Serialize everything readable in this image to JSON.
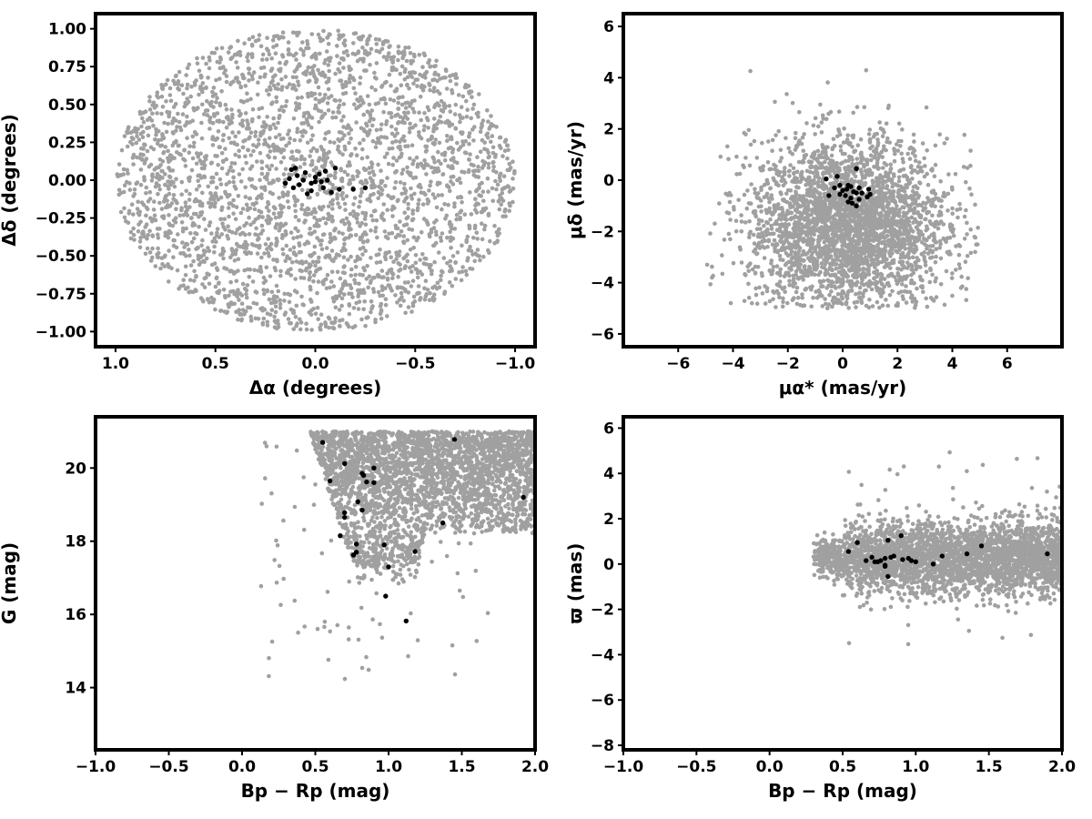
{
  "figure": {
    "colors": {
      "field": "#a0a0a0",
      "members": "#000000",
      "frame": "#000000"
    }
  },
  "chart_data": [
    {
      "type": "scatter",
      "xlabel": "Δα (degrees)",
      "ylabel": "Δδ (degrees)",
      "xlim": [
        1.1,
        -1.1
      ],
      "ylim": [
        -1.1,
        1.1
      ],
      "x_inverted": true,
      "grid": false,
      "xticks": [
        1.0,
        0.5,
        0.0,
        -0.5,
        -1.0
      ],
      "xtick_labels": [
        "1.0",
        "0.5",
        "0.0",
        "−0.5",
        "−1.0"
      ],
      "yticks": [
        1.0,
        0.75,
        0.5,
        0.25,
        0.0,
        -0.25,
        -0.5,
        -0.75,
        -1.0
      ],
      "ytick_labels": [
        "1.00",
        "0.75",
        "0.50",
        "0.25",
        "0.00",
        "−0.25",
        "−0.50",
        "−0.75",
        "−1.00"
      ],
      "field_region": {
        "shape": "disk",
        "center": [
          0,
          0
        ],
        "radius": 1.0,
        "approx_n": 3000
      },
      "member_points": [
        [
          -0.1,
          0.08
        ],
        [
          -0.05,
          0.06
        ],
        [
          -0.02,
          0.04
        ],
        [
          0.05,
          0.05
        ],
        [
          0.1,
          0.08
        ],
        [
          0.12,
          0.07
        ],
        [
          -0.06,
          0.0
        ],
        [
          -0.03,
          -0.01
        ],
        [
          0.0,
          -0.01
        ],
        [
          0.02,
          -0.02
        ],
        [
          0.06,
          0.0
        ],
        [
          0.08,
          -0.03
        ],
        [
          0.11,
          -0.05
        ],
        [
          0.13,
          0.01
        ],
        [
          0.15,
          -0.02
        ],
        [
          -0.04,
          -0.05
        ],
        [
          0.02,
          -0.07
        ],
        [
          0.04,
          -0.09
        ],
        [
          -0.08,
          -0.08
        ],
        [
          -0.12,
          -0.06
        ],
        [
          -0.19,
          -0.06
        ],
        [
          -0.25,
          -0.05
        ],
        [
          0.0,
          0.02
        ],
        [
          0.09,
          0.03
        ]
      ]
    },
    {
      "type": "scatter",
      "xlabel": "μα* (mas/yr)",
      "ylabel": "μδ (mas/yr)",
      "xlim": [
        -8,
        8
      ],
      "ylim": [
        -6.5,
        6.5
      ],
      "grid": false,
      "xticks": [
        -6,
        -4,
        -2,
        0,
        2,
        4,
        6
      ],
      "xtick_labels": [
        "−6",
        "−4",
        "−2",
        "0",
        "2",
        "4",
        "6"
      ],
      "yticks": [
        6,
        4,
        2,
        0,
        -2,
        -4,
        -6
      ],
      "ytick_labels": [
        "6",
        "4",
        "2",
        "0",
        "−2",
        "−4",
        "−6"
      ],
      "field_region": {
        "shape": "cloud",
        "center": [
          0.2,
          -1.8
        ],
        "spread": [
          1.8,
          1.7
        ],
        "approx_n": 3000
      },
      "member_points": [
        [
          -0.2,
          0.15
        ],
        [
          -0.6,
          0.05
        ],
        [
          0.5,
          0.45
        ],
        [
          -0.1,
          -0.2
        ],
        [
          0.2,
          -0.2
        ],
        [
          0.3,
          -0.25
        ],
        [
          0.6,
          -0.3
        ],
        [
          -0.3,
          -0.3
        ],
        [
          0.0,
          -0.4
        ],
        [
          0.4,
          -0.45
        ],
        [
          0.5,
          -0.5
        ],
        [
          0.95,
          -0.35
        ],
        [
          1.0,
          -0.55
        ],
        [
          0.1,
          -0.6
        ],
        [
          -0.5,
          -0.6
        ],
        [
          0.3,
          -0.7
        ],
        [
          0.6,
          -0.75
        ],
        [
          0.9,
          -0.65
        ],
        [
          -0.1,
          -0.55
        ],
        [
          0.35,
          -0.9
        ],
        [
          0.5,
          -1.0
        ],
        [
          0.2,
          -0.85
        ],
        [
          0.7,
          -0.5
        ],
        [
          0.15,
          -0.35
        ]
      ]
    },
    {
      "type": "scatter",
      "xlabel": "Bp − Rp (mag)",
      "ylabel": "G (mag)",
      "xlim": [
        -1.0,
        2.0
      ],
      "ylim": [
        12.3,
        21.4
      ],
      "y_inverted": false,
      "grid": false,
      "xticks": [
        -1.0,
        -0.5,
        0.0,
        0.5,
        1.0,
        1.5,
        2.0
      ],
      "xtick_labels": [
        "−1.0",
        "−0.5",
        "0.0",
        "0.5",
        "1.0",
        "1.5",
        "2.0"
      ],
      "yticks": [
        20,
        18,
        16,
        14
      ],
      "ytick_labels": [
        "20",
        "18",
        "16",
        "14"
      ],
      "field_region": {
        "shape": "cmd-wedge",
        "approx_n": 3000
      },
      "member_points": [
        [
          0.55,
          20.7
        ],
        [
          1.45,
          20.78
        ],
        [
          0.7,
          20.12
        ],
        [
          0.9,
          20.0
        ],
        [
          0.82,
          19.85
        ],
        [
          0.83,
          19.8
        ],
        [
          0.6,
          19.65
        ],
        [
          0.85,
          19.62
        ],
        [
          0.9,
          19.6
        ],
        [
          1.92,
          19.2
        ],
        [
          0.79,
          19.08
        ],
        [
          0.82,
          18.85
        ],
        [
          0.7,
          18.78
        ],
        [
          0.7,
          18.65
        ],
        [
          1.37,
          18.5
        ],
        [
          0.67,
          18.15
        ],
        [
          0.78,
          17.92
        ],
        [
          0.97,
          17.9
        ],
        [
          0.78,
          17.7
        ],
        [
          0.76,
          17.62
        ],
        [
          1.18,
          17.72
        ],
        [
          1.0,
          17.3
        ],
        [
          0.98,
          16.5
        ],
        [
          1.12,
          15.82
        ]
      ]
    },
    {
      "type": "scatter",
      "xlabel": "Bp − Rp (mag)",
      "ylabel": "ϖ (mas)",
      "xlim": [
        -1.0,
        2.0
      ],
      "ylim": [
        -8.2,
        6.5
      ],
      "grid": false,
      "xticks": [
        -1.0,
        -0.5,
        0.0,
        0.5,
        1.0,
        1.5,
        2.0
      ],
      "xtick_labels": [
        "−1.0",
        "−0.5",
        "0.0",
        "0.5",
        "1.0",
        "1.5",
        "2.0"
      ],
      "yticks": [
        6,
        4,
        2,
        0,
        -2,
        -4,
        -6,
        -8
      ],
      "ytick_labels": [
        "6",
        "4",
        "2",
        "0",
        "−2",
        "−4",
        "−6",
        "−8"
      ],
      "field_region": {
        "shape": "band",
        "center_y": 0.3,
        "spread_y": 0.8,
        "approx_n": 3000
      },
      "member_points": [
        [
          0.6,
          0.95
        ],
        [
          0.54,
          0.55
        ],
        [
          0.9,
          1.25
        ],
        [
          0.81,
          1.05
        ],
        [
          1.45,
          0.8
        ],
        [
          1.35,
          0.45
        ],
        [
          1.9,
          0.45
        ],
        [
          0.7,
          0.3
        ],
        [
          0.66,
          0.15
        ],
        [
          0.72,
          0.1
        ],
        [
          0.76,
          0.15
        ],
        [
          0.79,
          0.25
        ],
        [
          0.83,
          0.3
        ],
        [
          0.85,
          0.35
        ],
        [
          0.91,
          0.2
        ],
        [
          0.97,
          0.15
        ],
        [
          1.0,
          0.1
        ],
        [
          1.12,
          0.0
        ],
        [
          1.18,
          0.35
        ],
        [
          0.79,
          -0.05
        ],
        [
          0.79,
          -0.1
        ],
        [
          0.81,
          -0.55
        ],
        [
          0.74,
          0.1
        ],
        [
          0.95,
          0.25
        ]
      ]
    }
  ]
}
